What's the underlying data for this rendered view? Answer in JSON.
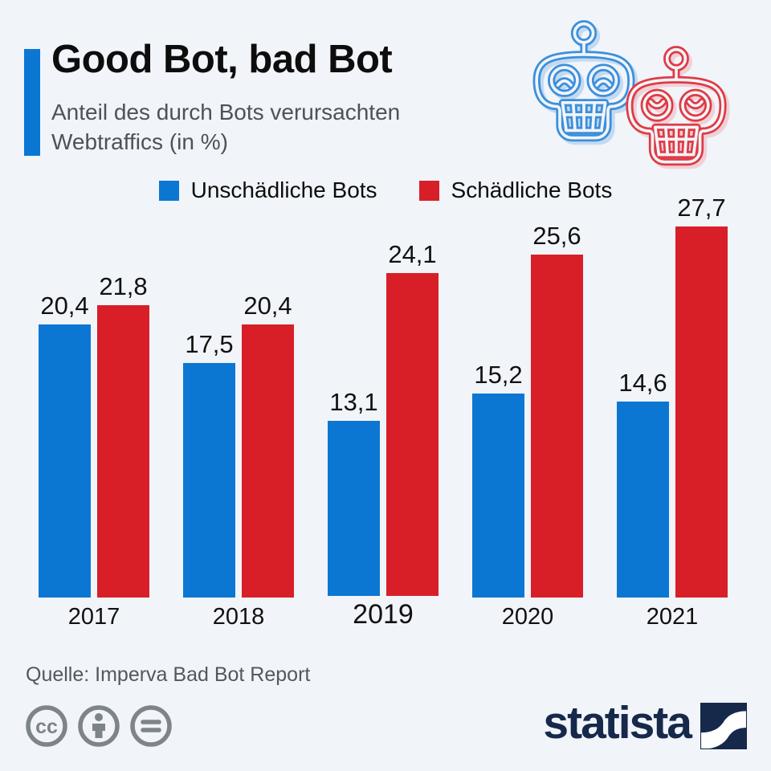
{
  "header": {
    "title": "Good Bot, bad Bot",
    "subtitle_line1": "Anteil des durch Bots verursachten",
    "subtitle_line2": "Webtraffics (in %)"
  },
  "legend": [
    {
      "label": "Unschädliche Bots",
      "color": "#0b77d2"
    },
    {
      "label": "Schädliche Bots",
      "color": "#d81f27"
    }
  ],
  "chart_data": {
    "type": "bar",
    "title": "Good Bot, bad Bot",
    "subtitle": "Anteil des durch Bots verursachten Webtraffics (in %)",
    "categories": [
      "2017",
      "2018",
      "2019",
      "2020",
      "2021"
    ],
    "series": [
      {
        "name": "Unschädliche Bots",
        "color": "#0b77d2",
        "values": [
          20.4,
          17.5,
          13.1,
          15.2,
          14.6
        ]
      },
      {
        "name": "Schädliche Bots",
        "color": "#d81f27",
        "values": [
          21.8,
          20.4,
          24.1,
          25.6,
          27.7
        ]
      }
    ],
    "value_labels": [
      [
        "20,4",
        "17,5",
        "13,1",
        "15,2",
        "14,6"
      ],
      [
        "21,8",
        "20,4",
        "24,1",
        "25,6",
        "27,7"
      ]
    ],
    "xlabel": "",
    "ylabel": "",
    "ylim": [
      0,
      28.9
    ],
    "grid": false,
    "axis_lines": false,
    "legend_position": "top",
    "decimal_separator": ","
  },
  "source": {
    "label": "Quelle: Imperva Bad Bot Report"
  },
  "footer": {
    "license_icons": [
      "cc-icon",
      "attribution-icon",
      "equals-icon"
    ],
    "brand": "statista"
  },
  "icons": {
    "good_bot": "blue-robot-outline-icon",
    "bad_bot": "red-robot-outline-icon",
    "brand_mark": "statista-curve-logo"
  },
  "colors": {
    "background": "#f1f4f9",
    "accent_bar": "#0b77d2",
    "good_bots": "#0b77d2",
    "bad_bots": "#d81f27",
    "robot_blue_stroke": "#3b8fdc",
    "robot_red_stroke": "#e03a43",
    "subtitle_text": "#4d5257",
    "source_text": "#54585d",
    "license_gray": "#7d848a",
    "brand_navy": "#16294b"
  }
}
